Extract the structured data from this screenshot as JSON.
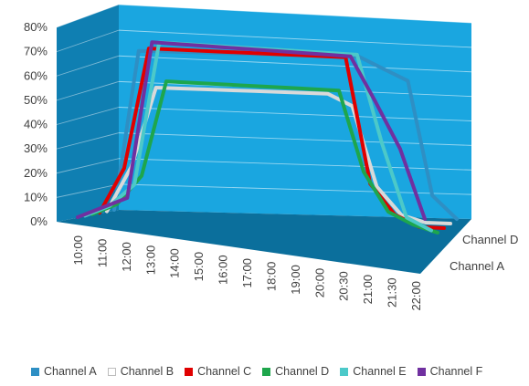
{
  "chart_data": {
    "type": "line",
    "view": "3d",
    "categories": [
      "10:00",
      "11:00",
      "12:00",
      "13:00",
      "14:00",
      "15:00",
      "16:00",
      "17:00",
      "18:00",
      "19:00",
      "20:00",
      "20:30",
      "21:00",
      "21:30",
      "22:00"
    ],
    "ylim": [
      0,
      80
    ],
    "yticks": [
      "0%",
      "10%",
      "20%",
      "30%",
      "40%",
      "50%",
      "60%",
      "70%",
      "80%"
    ],
    "depth_labels": [
      "Channel D",
      "Channel A"
    ],
    "series": [
      {
        "name": "Channel A",
        "color": "#2e8fc4",
        "values": [
          0,
          70,
          70,
          70,
          70,
          70,
          70,
          70,
          70,
          70,
          70,
          65,
          60,
          10,
          0
        ]
      },
      {
        "name": "Channel B",
        "color": "#d9d9d9",
        "values": [
          0,
          20,
          55,
          55,
          55,
          55,
          55,
          55,
          55,
          55,
          50,
          15,
          3,
          0,
          0
        ]
      },
      {
        "name": "Channel C",
        "color": "#e00000",
        "values": [
          0,
          20,
          73,
          73,
          73,
          73,
          73,
          73,
          73,
          73,
          73,
          18,
          5,
          0,
          0
        ]
      },
      {
        "name": "Channel D",
        "color": "#1ea64c",
        "values": [
          0,
          5,
          18,
          60,
          60,
          60,
          60,
          60,
          60,
          60,
          60,
          25,
          8,
          3,
          0
        ]
      },
      {
        "name": "Channel E",
        "color": "#4cc9c9",
        "values": [
          0,
          5,
          15,
          78,
          78,
          78,
          78,
          78,
          78,
          78,
          78,
          78,
          40,
          8,
          3
        ]
      },
      {
        "name": "Channel F",
        "color": "#7030a0",
        "values": [
          0,
          5,
          10,
          79,
          79,
          79,
          79,
          79,
          79,
          79,
          79,
          79,
          60,
          40,
          10
        ]
      }
    ]
  }
}
